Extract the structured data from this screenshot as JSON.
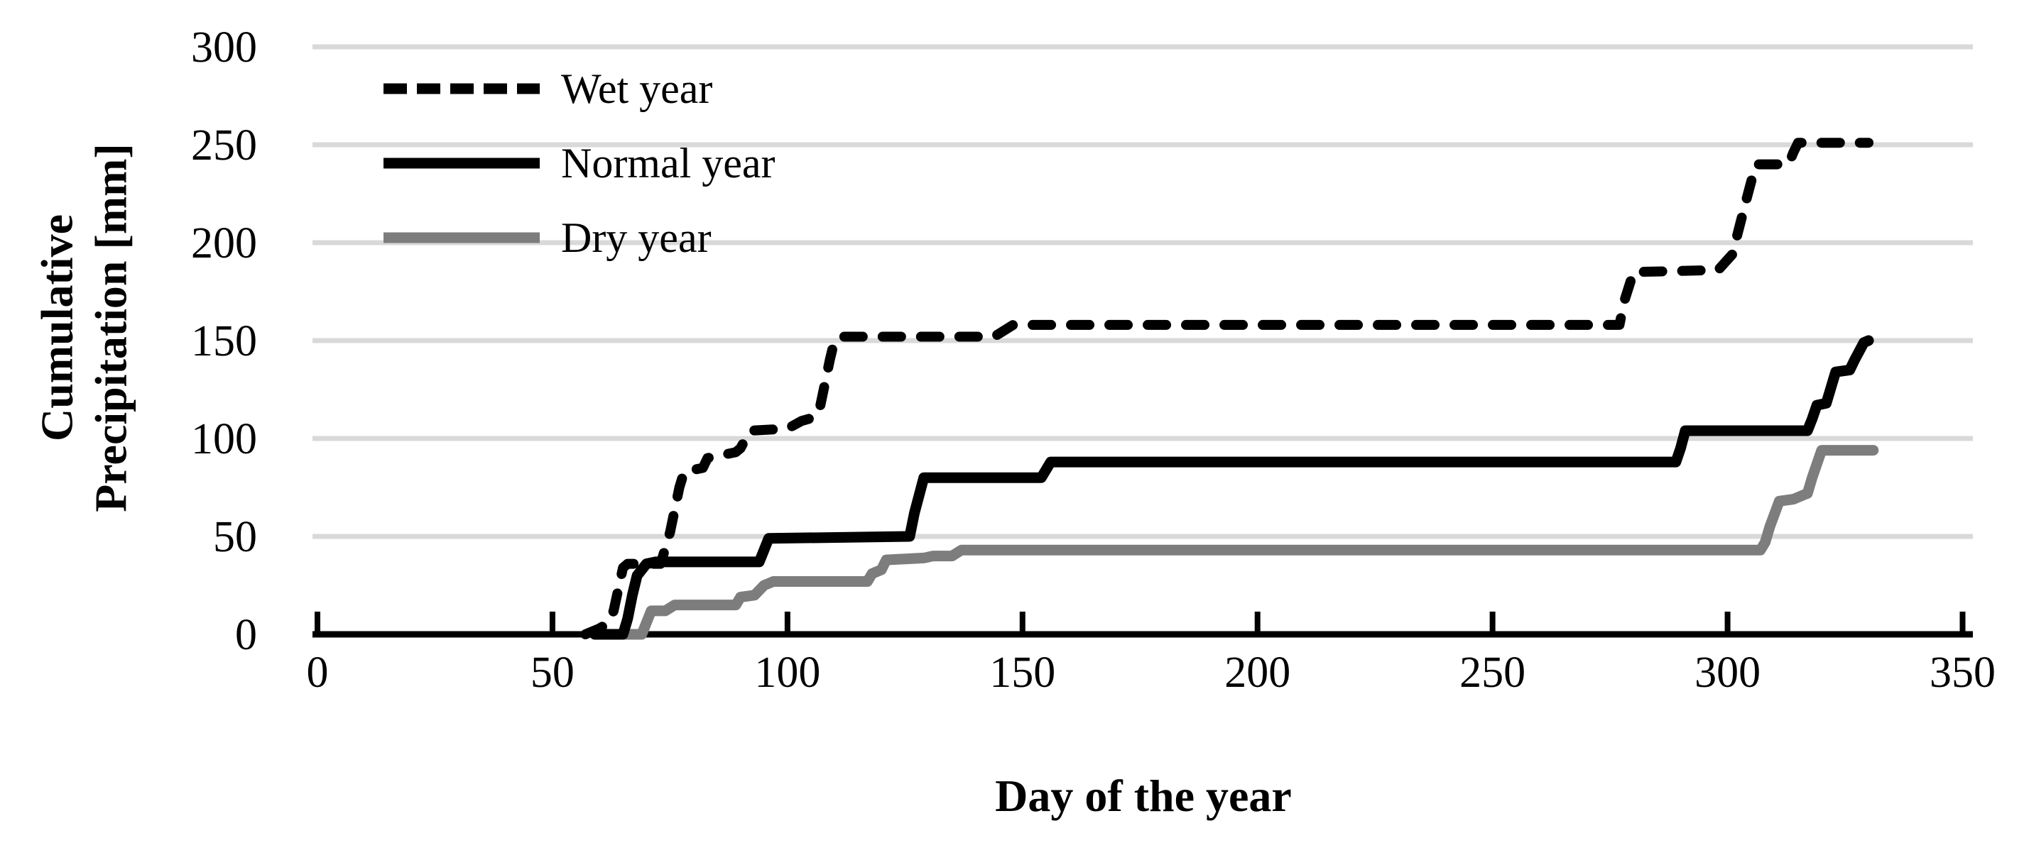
{
  "chart_data": {
    "type": "line",
    "title": "",
    "xlabel": "Day of the year",
    "ylabel_lines": [
      "Cumulative",
      "Precipitation [mm]"
    ],
    "xlim": [
      0,
      350
    ],
    "ylim": [
      0,
      300
    ],
    "xticks": [
      0,
      50,
      100,
      150,
      200,
      250,
      300,
      350
    ],
    "yticks": [
      0,
      50,
      100,
      150,
      200,
      250,
      300
    ],
    "grid": "horizontal",
    "legend_position": "top-left-inside",
    "colors": {
      "axis": "#000000",
      "gridline": "#d9d9d9",
      "background": "#ffffff"
    },
    "series": [
      {
        "name": "Dry year",
        "color": "#7d7d7d",
        "dash": false,
        "points": [
          [
            59,
            0
          ],
          [
            69,
            0
          ],
          [
            71,
            12
          ],
          [
            74,
            12
          ],
          [
            76,
            15
          ],
          [
            89,
            15
          ],
          [
            90,
            19
          ],
          [
            93,
            20
          ],
          [
            95,
            25
          ],
          [
            97,
            27
          ],
          [
            117,
            27
          ],
          [
            118,
            31
          ],
          [
            120,
            33
          ],
          [
            121,
            38
          ],
          [
            129,
            39
          ],
          [
            131,
            40
          ],
          [
            135,
            40
          ],
          [
            137,
            43
          ],
          [
            307,
            43
          ],
          [
            308,
            47
          ],
          [
            309,
            55
          ],
          [
            311,
            68
          ],
          [
            314,
            69
          ],
          [
            316,
            71
          ],
          [
            317,
            72
          ],
          [
            318,
            80
          ],
          [
            320,
            94
          ],
          [
            331,
            94
          ]
        ]
      },
      {
        "name": "Normal year",
        "color": "#000000",
        "dash": false,
        "points": [
          [
            59,
            0
          ],
          [
            65,
            0
          ],
          [
            66,
            8
          ],
          [
            67,
            20
          ],
          [
            68,
            30
          ],
          [
            70,
            36
          ],
          [
            72,
            37
          ],
          [
            94,
            37
          ],
          [
            95,
            43
          ],
          [
            96,
            49
          ],
          [
            126,
            50
          ],
          [
            127,
            62
          ],
          [
            129,
            80
          ],
          [
            154,
            80
          ],
          [
            156,
            88
          ],
          [
            289,
            88
          ],
          [
            290,
            95
          ],
          [
            291,
            104
          ],
          [
            317,
            104
          ],
          [
            318,
            110
          ],
          [
            319,
            117
          ],
          [
            321,
            118
          ],
          [
            322,
            126
          ],
          [
            323,
            134
          ],
          [
            326,
            135
          ],
          [
            327,
            140
          ],
          [
            329,
            149
          ],
          [
            330,
            150
          ]
        ]
      },
      {
        "name": "Wet year",
        "color": "#000000",
        "dash": true,
        "points": [
          [
            57,
            0
          ],
          [
            60,
            3
          ],
          [
            62,
            6
          ],
          [
            63,
            12
          ],
          [
            65,
            34
          ],
          [
            66,
            36
          ],
          [
            73,
            36
          ],
          [
            74,
            44
          ],
          [
            75,
            52
          ],
          [
            77,
            75
          ],
          [
            78,
            83
          ],
          [
            82,
            85
          ],
          [
            83,
            90
          ],
          [
            89,
            93
          ],
          [
            90,
            95
          ],
          [
            92,
            104
          ],
          [
            100,
            105
          ],
          [
            103,
            109
          ],
          [
            106,
            111
          ],
          [
            107,
            117
          ],
          [
            109,
            140
          ],
          [
            110,
            150
          ],
          [
            112,
            152
          ],
          [
            144,
            152
          ],
          [
            148,
            158
          ],
          [
            277,
            158
          ],
          [
            278,
            170
          ],
          [
            280,
            185
          ],
          [
            298,
            186
          ],
          [
            301,
            194
          ],
          [
            304,
            222
          ],
          [
            306,
            240
          ],
          [
            313,
            240
          ],
          [
            314,
            246
          ],
          [
            315,
            251
          ],
          [
            330,
            251
          ]
        ]
      }
    ]
  },
  "legend": {
    "items": [
      {
        "label": "Wet year",
        "color": "#000000",
        "dashed": true
      },
      {
        "label": "Normal year",
        "color": "#000000",
        "dashed": false
      },
      {
        "label": "Dry year",
        "color": "#7d7d7d",
        "dashed": false
      }
    ]
  }
}
